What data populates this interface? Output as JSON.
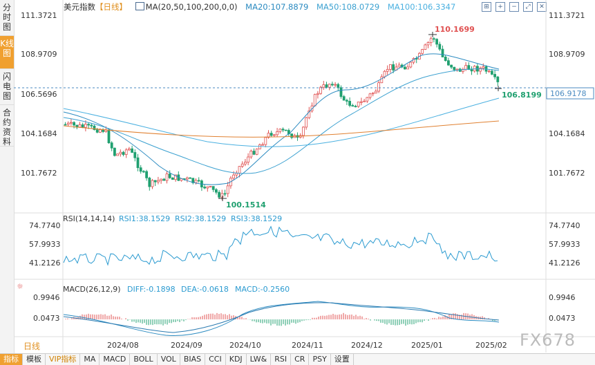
{
  "side_tabs": [
    {
      "label": "分时图",
      "active": false
    },
    {
      "label": "K线图",
      "active": true
    },
    {
      "label": "闪电图",
      "active": false
    },
    {
      "label": "合约资料",
      "active": false
    }
  ],
  "header": {
    "title": "美元指数",
    "period": "【日线】",
    "ma_icon": "chart-icon",
    "ma_params": "MA(20,50,100,200,0,0)",
    "ma20": "MA20:107.8879",
    "ma50": "MA50:108.0729",
    "ma100": "MA100:106.3347"
  },
  "tools": [
    {
      "icon": "crosshair-icon",
      "glyph": "⊞"
    },
    {
      "icon": "zoom-in-icon",
      "glyph": "+"
    },
    {
      "icon": "zoom-out-icon",
      "glyph": "−"
    },
    {
      "icon": "fullscreen-icon",
      "glyph": "⤢"
    },
    {
      "icon": "close-icon",
      "glyph": "✕"
    }
  ],
  "main_axis": {
    "labels": [
      "111.3721",
      "108.9709",
      "106.5696",
      "104.1684",
      "101.7672"
    ],
    "right_labels": [
      "111.3721",
      "108.9709",
      "104.1684",
      "101.7672"
    ],
    "current_price": "106.9178",
    "last_close": "106.8199",
    "high": "110.1699",
    "low": "100.1514"
  },
  "rsi": {
    "title": "RSI(14,14,14)",
    "rsi1": "RSI1:38.1529",
    "rsi2": "RSI2:38.1529",
    "rsi3": "RSI3:38.1529",
    "labels": [
      "74.7740",
      "57.9933",
      "41.2126"
    ]
  },
  "macd": {
    "title": "MACD(26,12,9)",
    "diff": "DIFF:-0.1898",
    "dea": "DEA:-0.0618",
    "macd": "MACD:-0.2560",
    "labels": [
      "0.9946",
      "0.0473"
    ]
  },
  "x_labels": [
    "2024/08",
    "2024/09",
    "2024/10",
    "2024/11",
    "2024/12",
    "2025/01",
    "2025/02"
  ],
  "period_label": "日线",
  "bottom_bar": [
    {
      "label": "指标",
      "active": true
    },
    {
      "label": "模板"
    },
    {
      "label": "VIP指标",
      "vip": true
    },
    {
      "label": "MA"
    },
    {
      "label": "MACD"
    },
    {
      "label": "BOLL"
    },
    {
      "label": "VOL"
    },
    {
      "label": "BIAS"
    },
    {
      "label": "CCI"
    },
    {
      "label": "KDJ"
    },
    {
      "label": "LW&"
    },
    {
      "label": "RSI"
    },
    {
      "label": "CR"
    },
    {
      "label": "PSY"
    },
    {
      "label": "设置"
    }
  ],
  "watermark": "FX678",
  "colors": {
    "up": "#e05050",
    "down": "#20a070",
    "ma20": "#2a8ac0",
    "ma50": "#3aa0d0",
    "ma100": "#4ab0e0",
    "ma200": "#e08030",
    "rsi": "#2a9ad0",
    "dea": "#2a7ab0",
    "header_blue": "#4a8ac0",
    "accent": "#f0a030"
  }
}
